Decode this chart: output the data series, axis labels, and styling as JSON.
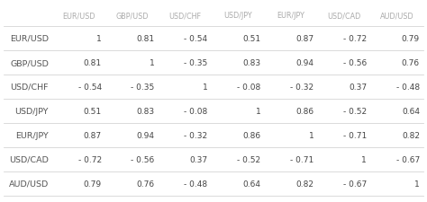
{
  "pairs": [
    "EUR/USD",
    "GBP/USD",
    "USD/CHF",
    "USD/JPY",
    "EUR/JPY",
    "USD/CAD",
    "AUD/USD"
  ],
  "matrix": [
    [
      1,
      0.81,
      -0.54,
      0.51,
      0.87,
      -0.72,
      0.79
    ],
    [
      0.81,
      1,
      -0.35,
      0.83,
      0.94,
      -0.56,
      0.76
    ],
    [
      -0.54,
      -0.35,
      1,
      -0.08,
      -0.32,
      0.37,
      -0.48
    ],
    [
      0.51,
      0.83,
      -0.08,
      1,
      0.86,
      -0.52,
      0.64
    ],
    [
      0.87,
      0.94,
      -0.32,
      0.86,
      1,
      -0.71,
      0.82
    ],
    [
      -0.72,
      -0.56,
      0.37,
      -0.52,
      -0.71,
      1,
      -0.67
    ],
    [
      0.79,
      0.76,
      -0.48,
      0.64,
      0.82,
      -0.67,
      1
    ]
  ],
  "bg_color": "#ffffff",
  "header_text_color": "#aaaaaa",
  "row_label_color": "#555555",
  "cell_text_color": "#444444",
  "line_color": "#cccccc",
  "font_size_header": 5.8,
  "font_size_cells": 6.5,
  "font_size_row_labels": 6.8
}
